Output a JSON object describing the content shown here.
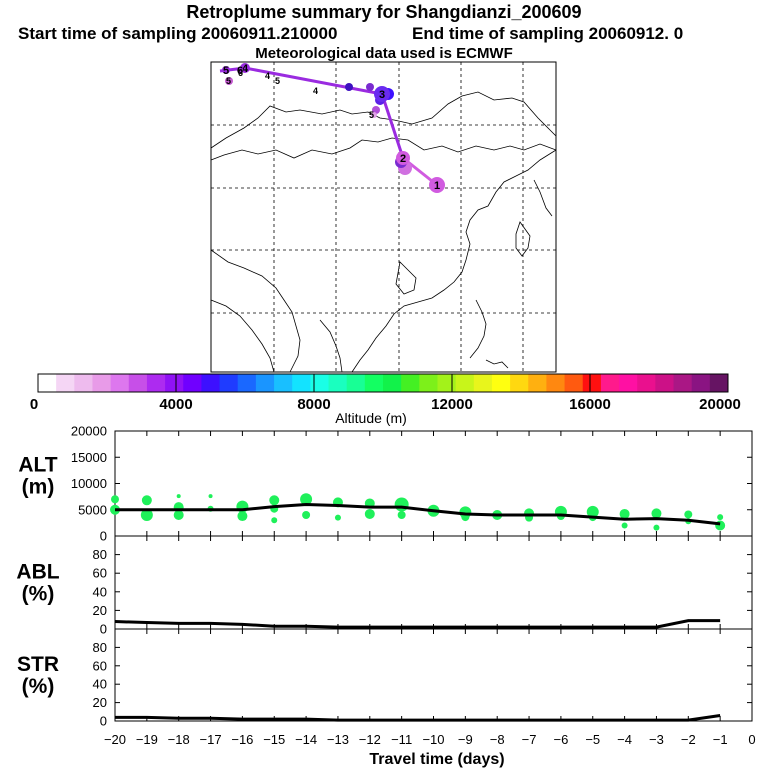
{
  "header": {
    "title": "Retroplume summary for Shangdianzi_200609",
    "start": "Start time of sampling 20060911.210000",
    "end": "End time of sampling 20060912.     0",
    "met": "Meteorological data used is ECMWF"
  },
  "map": {
    "track_color": "#9a2be0",
    "trajectory": [
      {
        "day": 1,
        "label": "1",
        "color": "#d15be0"
      },
      {
        "day": 2,
        "label": "2",
        "color": "#d15be0"
      },
      {
        "day": 3,
        "label": "3",
        "color": "#6a2bf0"
      },
      {
        "day": 4,
        "label": "4",
        "color": "#9a2be0"
      },
      {
        "day": 5,
        "label": "5",
        "color": "#9a2be0"
      },
      {
        "day": 6,
        "label": "6",
        "color": "#9a2be0"
      }
    ]
  },
  "colorbar": {
    "label": "Altitude (m)",
    "ticks": [
      "0",
      "4000",
      "8000",
      "12000",
      "16000",
      "20000"
    ],
    "colors": [
      "#ffffff",
      "#f5d6f5",
      "#eebbee",
      "#e89be8",
      "#dd77ee",
      "#c74fe8",
      "#ad2bf0",
      "#9012f5",
      "#7000ff",
      "#3d10ff",
      "#1f3cff",
      "#1a68ff",
      "#1a95ff",
      "#19bfff",
      "#13e3ff",
      "#1affe6",
      "#1affbf",
      "#18ff95",
      "#13ff62",
      "#12f24a",
      "#44f023",
      "#7df01a",
      "#a3f21a",
      "#c8f51a",
      "#e8f51c",
      "#ffff10",
      "#ffd810",
      "#ffb010",
      "#ff8810",
      "#ff5a10",
      "#ff1010",
      "#ff1a8c",
      "#ff10a3",
      "#ea108e",
      "#cc1187",
      "#aa1785",
      "#8a1482",
      "#661463"
    ]
  },
  "chart_data": [
    {
      "type": "scatter",
      "name": "ALT",
      "ylabel": "ALT\n(m)",
      "xlim": [
        -20,
        0
      ],
      "ylim": [
        0,
        20000
      ],
      "yticks": [
        "20000",
        "15000",
        "10000",
        "5000",
        "0"
      ],
      "line": {
        "x": [
          -20,
          -19,
          -18,
          -17,
          -16,
          -15,
          -14,
          -13,
          -12,
          -11,
          -10,
          -9,
          -8,
          -7,
          -6,
          -5,
          -4,
          -3,
          -2,
          -1
        ],
        "y": [
          5000,
          5000,
          5000,
          5000,
          5000,
          5600,
          6000,
          5800,
          5500,
          5500,
          4800,
          4200,
          4000,
          4000,
          4000,
          3600,
          3200,
          3300,
          3000,
          2300
        ]
      },
      "points_color": "#1ff05a",
      "points": [
        {
          "x": -20,
          "y": 7000,
          "s": 4
        },
        {
          "x": -20,
          "y": 5000,
          "s": 5
        },
        {
          "x": -19,
          "y": 6800,
          "s": 5
        },
        {
          "x": -19,
          "y": 4000,
          "s": 6
        },
        {
          "x": -18,
          "y": 7600,
          "s": 2
        },
        {
          "x": -18,
          "y": 5500,
          "s": 5
        },
        {
          "x": -18,
          "y": 4000,
          "s": 5
        },
        {
          "x": -17,
          "y": 7600,
          "s": 2
        },
        {
          "x": -17,
          "y": 5200,
          "s": 3
        },
        {
          "x": -16,
          "y": 5600,
          "s": 6
        },
        {
          "x": -16,
          "y": 3800,
          "s": 5
        },
        {
          "x": -15,
          "y": 6800,
          "s": 5
        },
        {
          "x": -15,
          "y": 5200,
          "s": 4
        },
        {
          "x": -15,
          "y": 3000,
          "s": 3
        },
        {
          "x": -14,
          "y": 7000,
          "s": 6
        },
        {
          "x": -14,
          "y": 4000,
          "s": 4
        },
        {
          "x": -13,
          "y": 6400,
          "s": 5
        },
        {
          "x": -13,
          "y": 3500,
          "s": 3
        },
        {
          "x": -12,
          "y": 6200,
          "s": 5
        },
        {
          "x": -12,
          "y": 4200,
          "s": 5
        },
        {
          "x": -11,
          "y": 6000,
          "s": 7
        },
        {
          "x": -11,
          "y": 4000,
          "s": 4
        },
        {
          "x": -10,
          "y": 4800,
          "s": 6
        },
        {
          "x": -9,
          "y": 4500,
          "s": 6
        },
        {
          "x": -9,
          "y": 3600,
          "s": 4
        },
        {
          "x": -8,
          "y": 4000,
          "s": 5
        },
        {
          "x": -7,
          "y": 4300,
          "s": 5
        },
        {
          "x": -7,
          "y": 3500,
          "s": 4
        },
        {
          "x": -6,
          "y": 4600,
          "s": 6
        },
        {
          "x": -6,
          "y": 3800,
          "s": 4
        },
        {
          "x": -5,
          "y": 4600,
          "s": 6
        },
        {
          "x": -5,
          "y": 3600,
          "s": 4
        },
        {
          "x": -4,
          "y": 4200,
          "s": 5
        },
        {
          "x": -4,
          "y": 2000,
          "s": 3
        },
        {
          "x": -3,
          "y": 4300,
          "s": 5
        },
        {
          "x": -3,
          "y": 1600,
          "s": 3
        },
        {
          "x": -2,
          "y": 4100,
          "s": 4
        },
        {
          "x": -2,
          "y": 2800,
          "s": 3
        },
        {
          "x": -1,
          "y": 3600,
          "s": 3
        },
        {
          "x": -1,
          "y": 2000,
          "s": 5
        }
      ]
    },
    {
      "type": "line",
      "name": "ABL",
      "ylabel": "ABL\n(%)",
      "xlim": [
        -20,
        0
      ],
      "ylim": [
        0,
        100
      ],
      "yticks": [
        "80",
        "60",
        "40",
        "20",
        "0"
      ],
      "x": [
        -20,
        -19,
        -18,
        -17,
        -16,
        -15,
        -14,
        -13,
        -12,
        -11,
        -10,
        -9,
        -8,
        -7,
        -6,
        -5,
        -4,
        -3,
        -2,
        -1
      ],
      "y": [
        8,
        7,
        6,
        6,
        5,
        3,
        3,
        2,
        2,
        2,
        2,
        2,
        2,
        2,
        2,
        2,
        2,
        2,
        9,
        9
      ]
    },
    {
      "type": "line",
      "name": "STR",
      "ylabel": "STR\n(%)",
      "xlim": [
        -20,
        0
      ],
      "ylim": [
        0,
        100
      ],
      "yticks": [
        "80",
        "60",
        "40",
        "20",
        "0"
      ],
      "xlabel": "Travel time (days)",
      "xticks": [
        "−20",
        "−19",
        "−18",
        "−17",
        "−16",
        "−15",
        "−14",
        "−13",
        "−12",
        "−11",
        "−10",
        "−9",
        "−8",
        "−7",
        "−6",
        "−5",
        "−4",
        "−3",
        "−2",
        "−1",
        "0"
      ],
      "x": [
        -20,
        -19,
        -18,
        -17,
        -16,
        -15,
        -14,
        -13,
        -12,
        -11,
        -10,
        -9,
        -8,
        -7,
        -6,
        -5,
        -4,
        -3,
        -2,
        -1
      ],
      "y": [
        4,
        4,
        3,
        3,
        2,
        2,
        2,
        1,
        1,
        1,
        1,
        1,
        1,
        1,
        1,
        1,
        1,
        1,
        1,
        6
      ]
    }
  ]
}
